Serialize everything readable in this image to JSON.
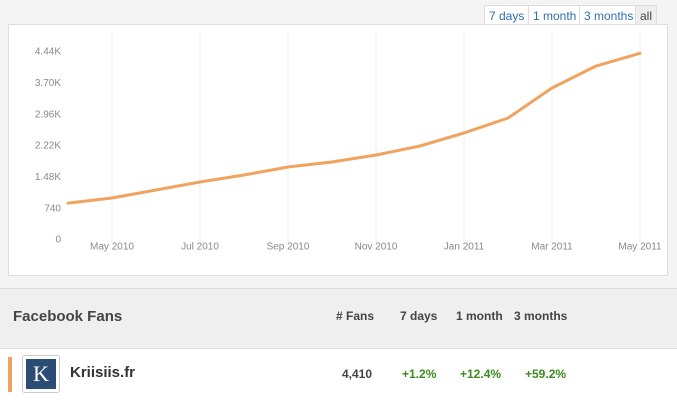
{
  "range_buttons": [
    "7 days",
    "1 month",
    "3 months",
    "all"
  ],
  "chart_data": {
    "type": "line",
    "x": [
      "Apr 2010",
      "May 2010",
      "Jun 2010",
      "Jul 2010",
      "Aug 2010",
      "Sep 2010",
      "Oct 2010",
      "Nov 2010",
      "Dec 2010",
      "Jan 2011",
      "Feb 2011",
      "Mar 2011",
      "Apr 2011",
      "May 2011"
    ],
    "series": [
      {
        "name": "Kriisiis.fr",
        "color": "#f0a35e",
        "values": [
          870,
          992,
          1181,
          1370,
          1535,
          1724,
          1842,
          2007,
          2220,
          2527,
          2881,
          3590,
          4109,
          4410
        ]
      }
    ],
    "xlim": [
      "Apr 2010",
      "May 2011"
    ],
    "xticks": [
      "May 2010",
      "Jul 2010",
      "Sep 2010",
      "Nov 2010",
      "Jan 2011",
      "Mar 2011",
      "May 2011"
    ],
    "ylim": [
      0,
      4440
    ],
    "yticks": [
      0,
      740,
      {
        "value": 1480,
        "label": "1.48K"
      },
      {
        "value": 2220,
        "label": "2.22K"
      },
      {
        "value": 2960,
        "label": "2.96K"
      },
      {
        "value": 3700,
        "label": "3.70K"
      },
      {
        "value": 4440,
        "label": "4.44K"
      }
    ],
    "grid": "x"
  },
  "table": {
    "title": "Facebook Fans",
    "columns": [
      "# Fans",
      "7 days",
      "1 month",
      "3 months"
    ],
    "rows": [
      {
        "logo": "K",
        "name": "Kriisiis.fr",
        "cells": [
          "4,410",
          "+1.2%",
          "+12.4%",
          "+59.2%"
        ]
      }
    ]
  }
}
